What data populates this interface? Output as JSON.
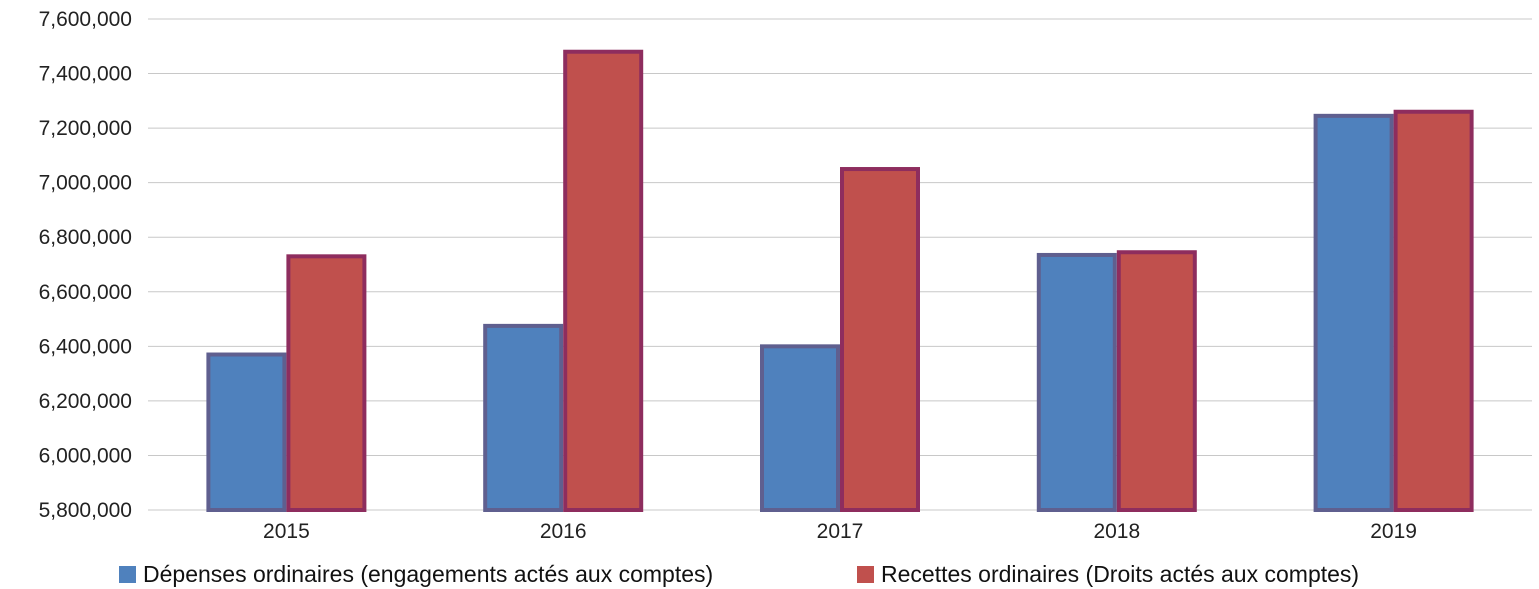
{
  "chart_data": {
    "type": "bar",
    "categories": [
      "2015",
      "2016",
      "2017",
      "2018",
      "2019"
    ],
    "series": [
      {
        "name": "Dépenses ordinaires (engagements actés aux comptes)",
        "values": [
          6370000,
          6475000,
          6400000,
          6735000,
          7245000
        ],
        "color": "#4F81BD",
        "border_color": "#5F5F8F"
      },
      {
        "name": "Recettes ordinaires (Droits actés aux comptes)",
        "values": [
          6730000,
          7480000,
          7050000,
          6745000,
          7260000
        ],
        "color": "#C0504D",
        "border_color": "#8E2D5E"
      }
    ],
    "ylim": [
      5800000,
      7600000
    ],
    "yticks": [
      5800000,
      6000000,
      6200000,
      6400000,
      6600000,
      6800000,
      7000000,
      7200000,
      7400000,
      7600000
    ],
    "ytick_labels": [
      "5,800,000",
      "6,000,000",
      "6,200,000",
      "6,400,000",
      "6,600,000",
      "6,800,000",
      "7,000,000",
      "7,200,000",
      "7,400,000",
      "7,600,000"
    ],
    "grid": true,
    "grid_color": "#C8C8C8",
    "legend_position": "bottom",
    "title": "",
    "xlabel": "",
    "ylabel": ""
  }
}
